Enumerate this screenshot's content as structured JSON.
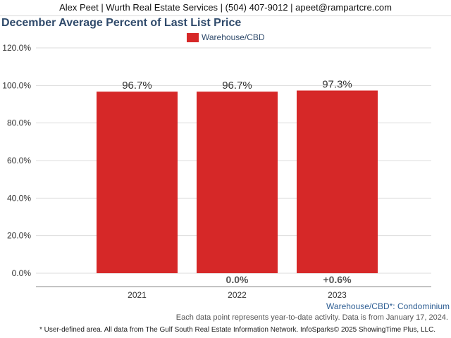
{
  "header": {
    "contact_line": "Alex Peet | Wurth Real Estate Services | (504) 407-9012 | apeet@rampartcre.com"
  },
  "chart_data": {
    "type": "bar",
    "title": "December Average Percent of Last List Price",
    "categories": [
      "2021",
      "2022",
      "2023"
    ],
    "series": [
      {
        "name": "Warehouse/CBD",
        "values": [
          96.7,
          96.7,
          97.3
        ],
        "value_labels": [
          "96.7%",
          "96.7%",
          "97.3%"
        ],
        "change_labels": [
          "",
          "0.0%",
          "+0.6%"
        ],
        "color": "#d62828"
      }
    ],
    "y_ticks": [
      "0.0%",
      "20.0%",
      "40.0%",
      "60.0%",
      "80.0%",
      "100.0%",
      "120.0%"
    ],
    "ylim": [
      0,
      120
    ],
    "grid": true,
    "legend_position": "top-center",
    "xlabel": "",
    "ylabel": ""
  },
  "captions": {
    "series_note": "Warehouse/CBD*: Condominium",
    "data_note": "Each data point represents year-to-date activity. Data is from January 17, 2024.",
    "footer": "* User-defined area. All data from The Gulf South Real Estate Information Network. InfoSparks© 2025 ShowingTime Plus, LLC."
  },
  "colors": {
    "bar": "#d62828",
    "title": "#2f4a6b",
    "grid": "#dddddd"
  }
}
